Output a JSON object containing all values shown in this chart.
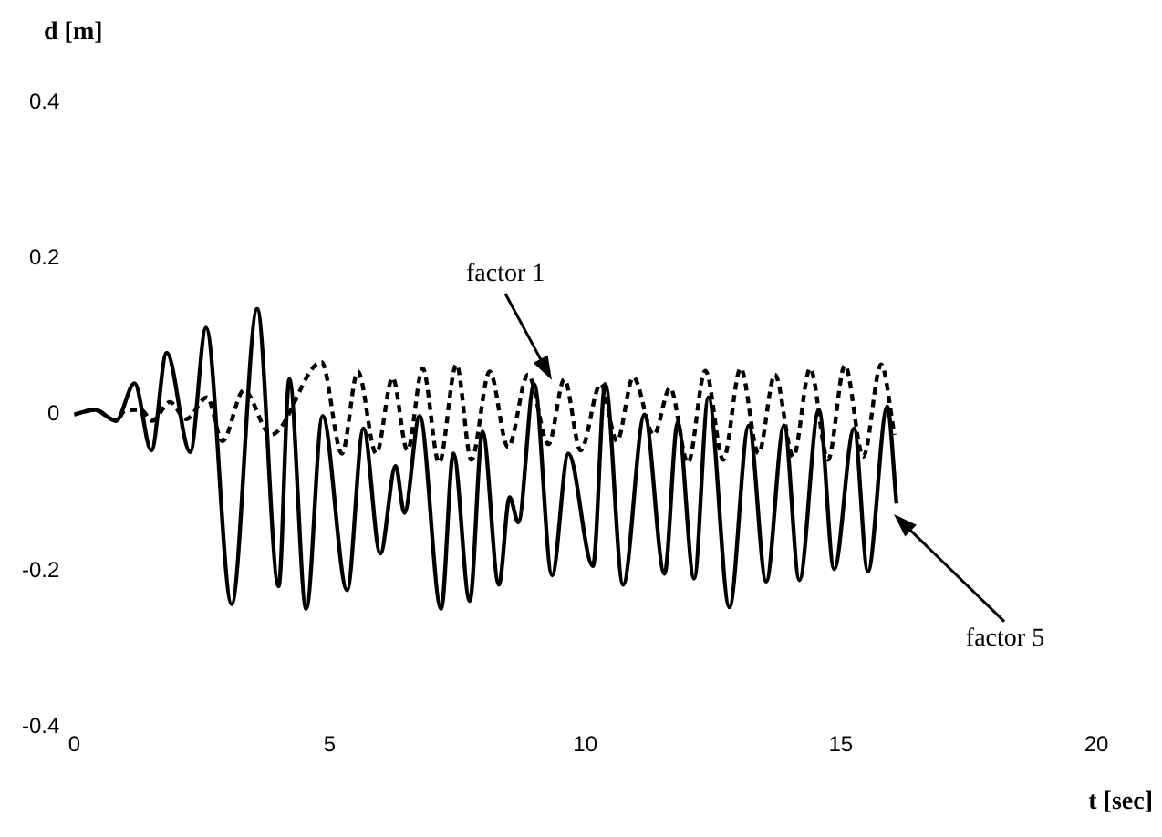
{
  "chart_data": {
    "type": "line",
    "xlabel": "t [sec]",
    "ylabel": "d [m]",
    "xlim": [
      0,
      20
    ],
    "xticks": [
      0,
      5,
      10,
      15,
      20
    ],
    "ylim": [
      -0.4,
      0.4
    ],
    "yticks": [
      -0.4,
      -0.2,
      0,
      0.2,
      0.4
    ],
    "grid": false,
    "legend": false,
    "marker": "none",
    "series": [
      {
        "color": "#000000",
        "line_style": "solid",
        "x": [
          0,
          0.4,
          0.82,
          1.18,
          1.51,
          1.81,
          2.27,
          2.58,
          3.08,
          3.58,
          4.0,
          4.21,
          4.54,
          4.86,
          5.34,
          5.66,
          5.99,
          6.29,
          6.46,
          6.76,
          7.18,
          7.42,
          7.74,
          7.99,
          8.31,
          8.52,
          8.69,
          9.0,
          9.35,
          9.67,
          10.15,
          10.39,
          10.74,
          11.16,
          11.55,
          11.81,
          12.13,
          12.41,
          12.82,
          13.2,
          13.54,
          13.89,
          14.19,
          14.57,
          14.87,
          15.26,
          15.53,
          15.91,
          16.09
        ],
        "values": [
          0,
          0.006,
          -0.008,
          0.04,
          -0.046,
          0.079,
          -0.048,
          0.111,
          -0.243,
          0.135,
          -0.22,
          0.045,
          -0.249,
          -0.002,
          -0.225,
          -0.018,
          -0.178,
          -0.066,
          -0.126,
          -0.002,
          -0.249,
          -0.05,
          -0.239,
          -0.022,
          -0.218,
          -0.106,
          -0.138,
          0.039,
          -0.206,
          -0.05,
          -0.194,
          0.039,
          -0.218,
          0,
          -0.204,
          -0.01,
          -0.21,
          0.022,
          -0.247,
          -0.014,
          -0.214,
          -0.014,
          -0.212,
          0.006,
          -0.198,
          -0.018,
          -0.201,
          0.01,
          -0.114
        ]
      },
      {
        "color": "#000000",
        "line_style": "dashed",
        "x": [
          0,
          0.4,
          0.82,
          1.0,
          1.3,
          1.53,
          1.87,
          2.19,
          2.6,
          2.9,
          3.32,
          3.85,
          4.84,
          5.24,
          5.55,
          5.91,
          6.23,
          6.52,
          6.82,
          7.14,
          7.48,
          7.77,
          8.13,
          8.49,
          8.88,
          9.28,
          9.59,
          9.91,
          10.3,
          10.62,
          10.94,
          11.34,
          11.66,
          12.01,
          12.35,
          12.7,
          13.04,
          13.39,
          13.71,
          14.07,
          14.4,
          14.75,
          15.08,
          15.44,
          15.79,
          16.05
        ],
        "values": [
          0,
          0.006,
          -0.008,
          0.005,
          0.006,
          -0.008,
          0.016,
          -0.006,
          0.022,
          -0.034,
          0.031,
          -0.026,
          0.067,
          -0.05,
          0.055,
          -0.05,
          0.047,
          -0.046,
          0.059,
          -0.062,
          0.064,
          -0.058,
          0.055,
          -0.042,
          0.051,
          -0.038,
          0.045,
          -0.046,
          0.039,
          -0.034,
          0.048,
          -0.026,
          0.034,
          -0.062,
          0.056,
          -0.058,
          0.059,
          -0.05,
          0.051,
          -0.054,
          0.059,
          -0.058,
          0.063,
          -0.054,
          0.064,
          -0.026
        ]
      }
    ],
    "annotations": [
      "factor 1",
      "factor 5"
    ]
  }
}
